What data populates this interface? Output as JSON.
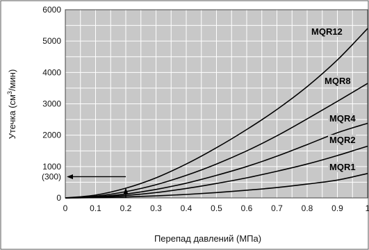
{
  "chart_data": {
    "type": "line",
    "title": "",
    "xlabel": "Перепад давлений (МПа)",
    "ylabel_main": "Утечка (см",
    "ylabel_sup": "3",
    "ylabel_tail": "/мин)",
    "xlim": [
      0,
      1
    ],
    "ylim": [
      0,
      6000
    ],
    "x_ticks": [
      0,
      0.1,
      0.2,
      0.3,
      0.4,
      0.5,
      0.6,
      0.7,
      0.8,
      0.9,
      1
    ],
    "x_tick_labels": [
      "0",
      "0.1",
      "0.2",
      "0.3",
      "0.4",
      "0.5",
      "0.6",
      "0.7",
      "0.8",
      "0.9",
      "1"
    ],
    "y_ticks": [
      0,
      1000,
      2000,
      3000,
      4000,
      5000,
      6000
    ],
    "y_tick_labels": [
      "0",
      "1000",
      "2000",
      "3000",
      "4000",
      "5000",
      "6000"
    ],
    "grid": true,
    "background_color": "#c8c8c8",
    "grid_color": "#ffffff",
    "line_color": "#000000",
    "series": [
      {
        "name": "MQR12",
        "x": [
          0,
          0.1,
          0.2,
          0.3,
          0.4,
          0.5,
          0.6,
          0.7,
          0.8,
          0.9,
          1.0
        ],
        "y": [
          0,
          90,
          310,
          640,
          1080,
          1600,
          2180,
          2820,
          3550,
          4400,
          5400
        ]
      },
      {
        "name": "MQR8",
        "x": [
          0,
          0.1,
          0.2,
          0.3,
          0.4,
          0.5,
          0.6,
          0.7,
          0.8,
          0.9,
          1.0
        ],
        "y": [
          0,
          55,
          200,
          420,
          720,
          1080,
          1500,
          1980,
          2520,
          3080,
          3650
        ]
      },
      {
        "name": "MQR4",
        "x": [
          0,
          0.1,
          0.2,
          0.3,
          0.4,
          0.5,
          0.6,
          0.7,
          0.8,
          0.9,
          1.0
        ],
        "y": [
          0,
          35,
          125,
          270,
          470,
          720,
          1000,
          1330,
          1700,
          2080,
          2380
        ]
      },
      {
        "name": "MQR2",
        "x": [
          0,
          0.1,
          0.2,
          0.3,
          0.4,
          0.5,
          0.6,
          0.7,
          0.8,
          0.9,
          1.0
        ],
        "y": [
          0,
          20,
          80,
          170,
          300,
          460,
          640,
          850,
          1080,
          1350,
          1650
        ]
      },
      {
        "name": "MQR1",
        "x": [
          0,
          0.1,
          0.2,
          0.3,
          0.4,
          0.5,
          0.6,
          0.7,
          0.8,
          0.9,
          1.0
        ],
        "y": [
          0,
          8,
          30,
          65,
          110,
          170,
          245,
          330,
          440,
          570,
          780
        ]
      }
    ],
    "annotations": [
      {
        "label": "(300)",
        "x": 0.2,
        "y": 300
      }
    ]
  }
}
